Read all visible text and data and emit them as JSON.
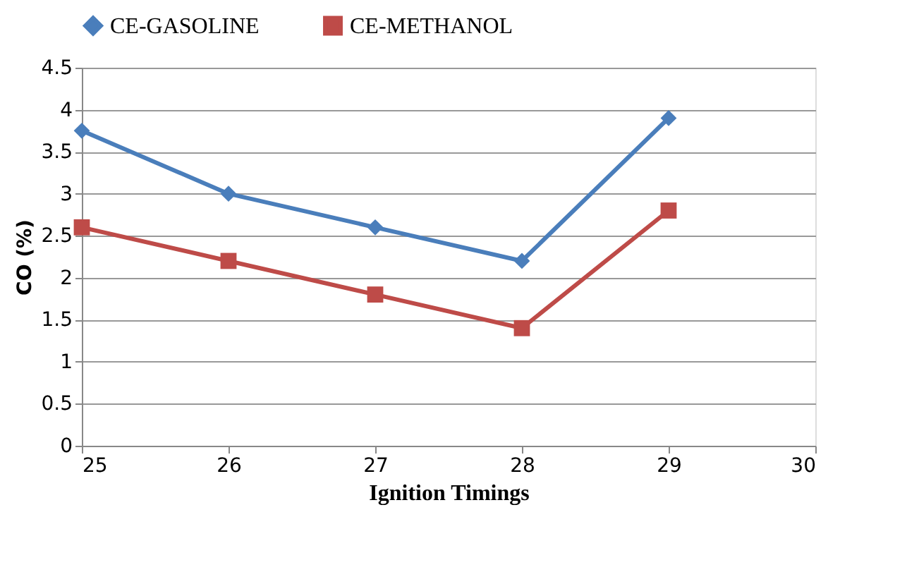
{
  "chart_data": {
    "type": "line",
    "xlabel": "Ignition Timings",
    "ylabel": "CO (%)",
    "x": [
      25,
      26,
      27,
      28,
      29
    ],
    "series": [
      {
        "name": "CE-GASOLINE",
        "color": "#4a7ebb",
        "marker": "diamond",
        "values": [
          3.75,
          3.0,
          2.6,
          2.2,
          3.9
        ]
      },
      {
        "name": "CE-METHANOL",
        "color": "#be4b48",
        "marker": "square",
        "values": [
          2.6,
          2.2,
          1.8,
          1.4,
          2.8
        ]
      }
    ],
    "xlim": [
      25,
      30
    ],
    "xticks": [
      25,
      26,
      27,
      28,
      29,
      30
    ],
    "ylim": [
      0,
      4.5
    ],
    "yticks": [
      0,
      0.5,
      1,
      1.5,
      2,
      2.5,
      3,
      3.5,
      4,
      4.5
    ],
    "grid": "y",
    "legend": "top",
    "line_style": "solid"
  }
}
